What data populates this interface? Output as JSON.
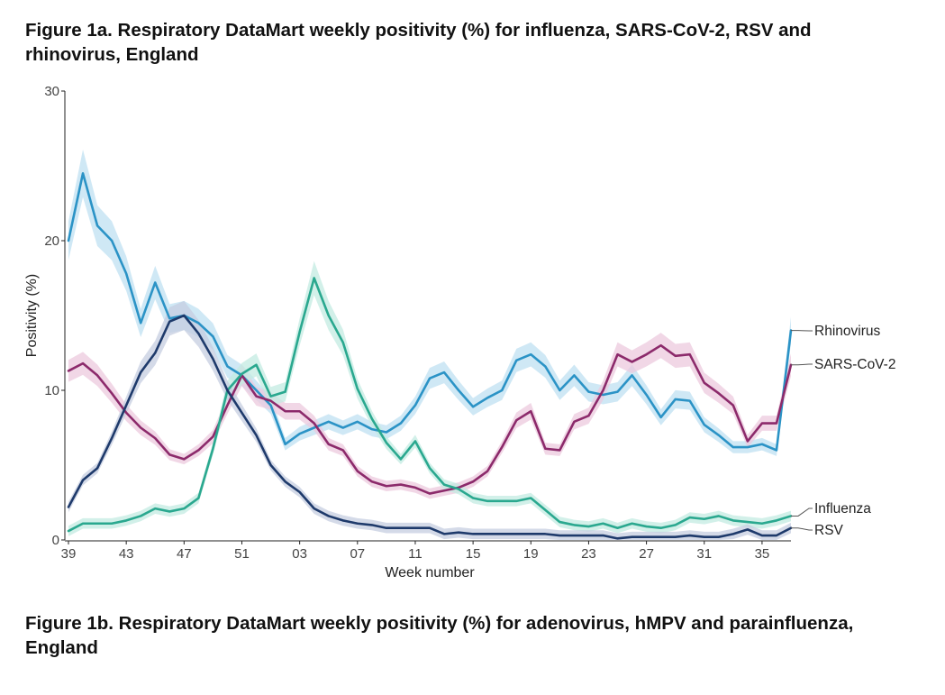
{
  "figure_1a": {
    "title": "Figure 1a. Respiratory DataMart weekly positivity (%) for influenza, SARS-CoV-2, RSV and rhinovirus, England"
  },
  "figure_1b": {
    "title": "Figure 1b. Respiratory DataMart weekly positivity (%) for adenovirus, hMPV and parainfluenza, England"
  },
  "chart_data": {
    "type": "line",
    "xlabel": "Week number",
    "ylabel": "Positivity (%)",
    "ylim": [
      0,
      30
    ],
    "yticks": [
      0,
      10,
      20,
      30
    ],
    "xtick_labels": [
      "39",
      "43",
      "47",
      "51",
      "03",
      "07",
      "11",
      "15",
      "19",
      "23",
      "27",
      "31",
      "35"
    ],
    "x": [
      "39",
      "40",
      "41",
      "42",
      "43",
      "44",
      "45",
      "46",
      "47",
      "48",
      "49",
      "50",
      "51",
      "52",
      "01",
      "02",
      "03",
      "04",
      "05",
      "06",
      "07",
      "08",
      "09",
      "10",
      "11",
      "12",
      "13",
      "14",
      "15",
      "16",
      "17",
      "18",
      "19",
      "20",
      "21",
      "22",
      "23",
      "24",
      "25",
      "26",
      "27",
      "28",
      "29",
      "30",
      "31",
      "32",
      "33",
      "34",
      "35",
      "36",
      "37"
    ],
    "grid": false,
    "legend": "direct labels at right end of lines",
    "series": [
      {
        "name": "Rhinovirus",
        "color": "#2b93c6",
        "band_color": "#bfe0f2",
        "values": [
          20.0,
          24.5,
          21.0,
          20.0,
          17.8,
          14.5,
          17.2,
          14.8,
          15.0,
          14.5,
          13.6,
          11.6,
          11.0,
          10.0,
          9.0,
          6.4,
          7.1,
          7.5,
          7.9,
          7.5,
          7.9,
          7.4,
          7.2,
          7.8,
          9.0,
          10.8,
          11.2,
          10.0,
          8.9,
          9.5,
          10.0,
          12.0,
          12.4,
          11.6,
          10.0,
          11.0,
          9.9,
          9.7,
          9.9,
          11.0,
          9.7,
          8.2,
          9.4,
          9.3,
          7.7,
          7.0,
          6.2,
          6.2,
          6.4,
          6.0,
          14.0
        ]
      },
      {
        "name": "SARS-CoV-2",
        "color": "#8c2a6b",
        "band_color": "#ecc9dd",
        "values": [
          11.3,
          11.8,
          11.0,
          9.8,
          8.5,
          7.5,
          6.8,
          5.7,
          5.4,
          6.0,
          6.9,
          9.0,
          11.0,
          9.6,
          9.3,
          8.6,
          8.6,
          7.8,
          6.4,
          6.0,
          4.6,
          3.9,
          3.6,
          3.7,
          3.5,
          3.1,
          3.3,
          3.5,
          3.9,
          4.6,
          6.2,
          8.0,
          8.6,
          6.1,
          6.0,
          7.9,
          8.3,
          10.0,
          12.4,
          11.9,
          12.4,
          13.0,
          12.3,
          12.4,
          10.5,
          9.8,
          9.0,
          6.6,
          7.8,
          7.8,
          11.7
        ]
      },
      {
        "name": "Influenza",
        "color": "#2aa88f",
        "band_color": "#c3ebe2",
        "values": [
          0.6,
          1.1,
          1.1,
          1.1,
          1.3,
          1.6,
          2.1,
          1.9,
          2.1,
          2.8,
          6.1,
          10.0,
          11.1,
          11.7,
          9.6,
          9.9,
          13.9,
          17.5,
          15.0,
          13.2,
          10.1,
          8.1,
          6.5,
          5.4,
          6.6,
          4.8,
          3.7,
          3.4,
          2.8,
          2.6,
          2.6,
          2.6,
          2.8,
          2.0,
          1.2,
          1.0,
          0.9,
          1.1,
          0.8,
          1.1,
          0.9,
          0.8,
          1.0,
          1.5,
          1.4,
          1.6,
          1.3,
          1.2,
          1.1,
          1.3,
          1.6
        ]
      },
      {
        "name": "RSV",
        "color": "#1e3a6b",
        "band_color": "#c5cde0",
        "values": [
          2.2,
          4.0,
          4.8,
          6.8,
          9.0,
          11.2,
          12.5,
          14.6,
          15.0,
          13.8,
          12.1,
          10.0,
          8.5,
          7.0,
          5.0,
          3.9,
          3.2,
          2.1,
          1.6,
          1.3,
          1.1,
          1.0,
          0.8,
          0.8,
          0.8,
          0.8,
          0.4,
          0.5,
          0.4,
          0.4,
          0.4,
          0.4,
          0.4,
          0.4,
          0.3,
          0.3,
          0.3,
          0.3,
          0.1,
          0.2,
          0.2,
          0.2,
          0.2,
          0.3,
          0.2,
          0.2,
          0.4,
          0.7,
          0.3,
          0.3,
          0.8
        ]
      }
    ]
  }
}
